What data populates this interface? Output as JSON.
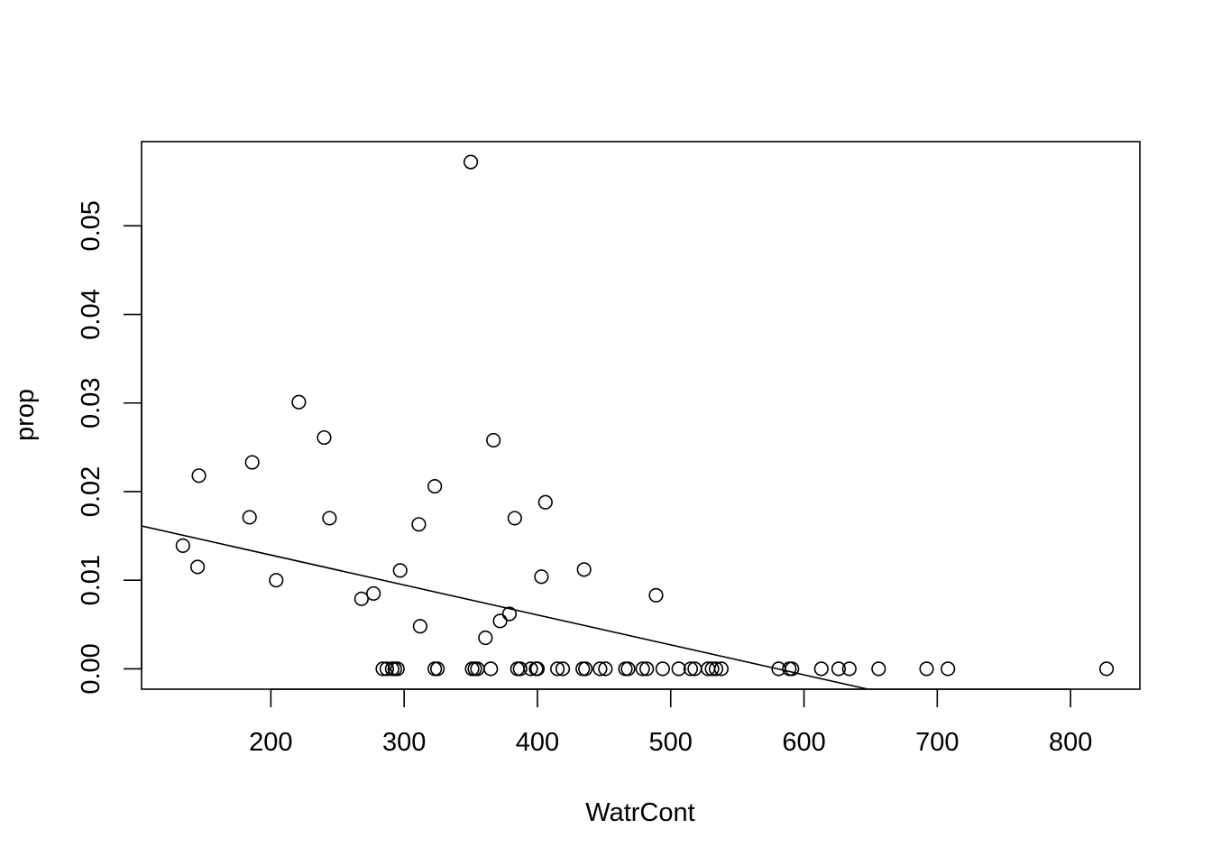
{
  "chart_data": {
    "type": "scatter",
    "title": "",
    "xlabel": "WatrCont",
    "ylabel": "prop",
    "xlim": [
      103,
      852
    ],
    "ylim": [
      -0.0023,
      0.0595
    ],
    "x_ticks": [
      200,
      300,
      400,
      500,
      600,
      700,
      800
    ],
    "x_tick_labels": [
      "200",
      "300",
      "400",
      "500",
      "600",
      "700",
      "800"
    ],
    "y_ticks": [
      0.0,
      0.01,
      0.02,
      0.03,
      0.04,
      0.05
    ],
    "y_tick_labels": [
      "0.00",
      "0.01",
      "0.02",
      "0.03",
      "0.04",
      "0.05"
    ],
    "grid": false,
    "legend": "none",
    "points": [
      {
        "x": 134,
        "y": 0.0139
      },
      {
        "x": 145,
        "y": 0.0115
      },
      {
        "x": 146,
        "y": 0.0218
      },
      {
        "x": 184,
        "y": 0.0171
      },
      {
        "x": 186,
        "y": 0.0233
      },
      {
        "x": 204,
        "y": 0.01
      },
      {
        "x": 221,
        "y": 0.0301
      },
      {
        "x": 240,
        "y": 0.0261
      },
      {
        "x": 244,
        "y": 0.017
      },
      {
        "x": 268,
        "y": 0.0079
      },
      {
        "x": 277,
        "y": 0.0085
      },
      {
        "x": 297,
        "y": 0.0111
      },
      {
        "x": 311,
        "y": 0.0163
      },
      {
        "x": 312,
        "y": 0.0048
      },
      {
        "x": 323,
        "y": 0.0206
      },
      {
        "x": 350,
        "y": 0.0572
      },
      {
        "x": 361,
        "y": 0.0035
      },
      {
        "x": 367,
        "y": 0.0258
      },
      {
        "x": 372,
        "y": 0.0054
      },
      {
        "x": 379,
        "y": 0.0062
      },
      {
        "x": 383,
        "y": 0.017
      },
      {
        "x": 403,
        "y": 0.0104
      },
      {
        "x": 406,
        "y": 0.0188
      },
      {
        "x": 435,
        "y": 0.0112
      },
      {
        "x": 489,
        "y": 0.0083
      },
      {
        "x": 284,
        "y": 0
      },
      {
        "x": 287,
        "y": 0
      },
      {
        "x": 291,
        "y": 0
      },
      {
        "x": 293,
        "y": 0
      },
      {
        "x": 295,
        "y": 0
      },
      {
        "x": 323,
        "y": 0
      },
      {
        "x": 325,
        "y": 0
      },
      {
        "x": 351,
        "y": 0
      },
      {
        "x": 353,
        "y": 0
      },
      {
        "x": 355,
        "y": 0
      },
      {
        "x": 365,
        "y": 0
      },
      {
        "x": 385,
        "y": 0
      },
      {
        "x": 387,
        "y": 0
      },
      {
        "x": 395,
        "y": 0
      },
      {
        "x": 399,
        "y": 0
      },
      {
        "x": 400,
        "y": 0
      },
      {
        "x": 415,
        "y": 0
      },
      {
        "x": 419,
        "y": 0
      },
      {
        "x": 434,
        "y": 0
      },
      {
        "x": 436,
        "y": 0
      },
      {
        "x": 447,
        "y": 0
      },
      {
        "x": 451,
        "y": 0
      },
      {
        "x": 466,
        "y": 0
      },
      {
        "x": 468,
        "y": 0
      },
      {
        "x": 479,
        "y": 0
      },
      {
        "x": 482,
        "y": 0
      },
      {
        "x": 494,
        "y": 0
      },
      {
        "x": 506,
        "y": 0
      },
      {
        "x": 515,
        "y": 0
      },
      {
        "x": 518,
        "y": 0
      },
      {
        "x": 528,
        "y": 0
      },
      {
        "x": 531,
        "y": 0
      },
      {
        "x": 534,
        "y": 0
      },
      {
        "x": 538,
        "y": 0
      },
      {
        "x": 581,
        "y": 0
      },
      {
        "x": 589,
        "y": 0
      },
      {
        "x": 591,
        "y": 0
      },
      {
        "x": 613,
        "y": 0
      },
      {
        "x": 626,
        "y": 0
      },
      {
        "x": 634,
        "y": 0
      },
      {
        "x": 656,
        "y": 0
      },
      {
        "x": 692,
        "y": 0
      },
      {
        "x": 708,
        "y": 0
      },
      {
        "x": 827,
        "y": 0
      }
    ],
    "regression_line": {
      "intercept": 0.0196,
      "slope": -3.38e-05
    }
  }
}
